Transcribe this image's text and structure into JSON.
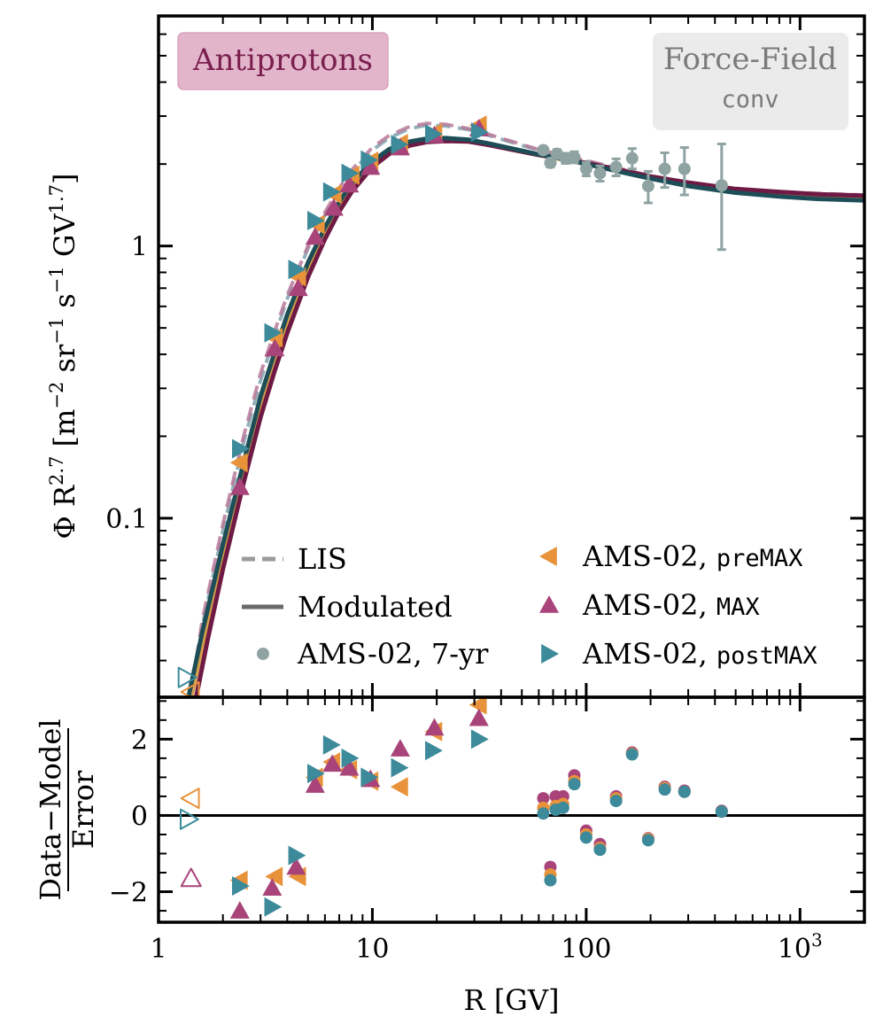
{
  "chart_data": [
    {
      "type": "line",
      "panel": "main",
      "title_badge": "Antiprotons",
      "model_badge": {
        "line1": "Force-Field",
        "line2": "conv"
      },
      "xlabel": "R [GV]",
      "xscale": "log",
      "yscale": "log",
      "xlim": [
        1,
        2000
      ],
      "ylim": [
        0.022,
        7
      ],
      "ylabel": {
        "main": "Φ R",
        "exp": "2.7",
        "units": "[m",
        "u1": "−2",
        "sr": " sr",
        "u2": "−1",
        "s": " s",
        "u3": "−1",
        "gv": " GV",
        "u4": "1.7",
        "close": "]"
      },
      "yticks": [
        {
          "value": 0.1,
          "label": "0.1"
        },
        {
          "value": 1,
          "label": "1"
        }
      ],
      "xticks": [
        {
          "value": 1,
          "label": "1"
        },
        {
          "value": 10,
          "label": "10"
        },
        {
          "value": 100,
          "label": "100"
        },
        {
          "value": 1000,
          "label": "10",
          "exp": "3"
        }
      ],
      "colors": {
        "lis": "#6b8a9a",
        "lis_max": "#b06a92",
        "mod_post": "#1d4e57",
        "mod_max": "#6e1a44",
        "mod_pre": "#d9a04a",
        "gray": "#8fa3a3",
        "pre": "#e8923a",
        "max": "#a8447a",
        "post": "#3c8a9a"
      },
      "series": [
        {
          "name": "LIS (postMAX)",
          "style": "dashed",
          "color": "#7fa2ad",
          "x": [
            1.4,
            1.6,
            2,
            2.5,
            3,
            3.5,
            4,
            5,
            6,
            7,
            8,
            10,
            12,
            15,
            18,
            22,
            28,
            35,
            45,
            60,
            80,
            100,
            150,
            200,
            300,
            500,
            800,
            1200,
            2000
          ],
          "y": [
            0.02,
            0.04,
            0.09,
            0.19,
            0.32,
            0.47,
            0.64,
            0.98,
            1.3,
            1.6,
            1.86,
            2.25,
            2.5,
            2.7,
            2.78,
            2.76,
            2.68,
            2.55,
            2.4,
            2.25,
            2.13,
            2.05,
            1.9,
            1.8,
            1.7,
            1.6,
            1.56,
            1.54,
            1.52
          ]
        },
        {
          "name": "LIS (MAX)",
          "style": "dashed",
          "color": "#b87a9a",
          "x": [
            1.4,
            1.6,
            2,
            2.5,
            3,
            3.5,
            4,
            5,
            6,
            7,
            8,
            10,
            12,
            15,
            18,
            22,
            28,
            35,
            45,
            60,
            80,
            100,
            150,
            200,
            300,
            500,
            800,
            1200,
            2000
          ],
          "y": [
            0.021,
            0.042,
            0.095,
            0.2,
            0.34,
            0.49,
            0.66,
            1.0,
            1.33,
            1.63,
            1.9,
            2.3,
            2.55,
            2.75,
            2.82,
            2.8,
            2.7,
            2.57,
            2.42,
            2.26,
            2.14,
            2.06,
            1.91,
            1.81,
            1.71,
            1.62,
            1.58,
            1.56,
            1.54
          ]
        },
        {
          "name": "Modulated (preMAX)",
          "style": "solid",
          "color": "#d9a04a",
          "x": [
            1.42,
            1.6,
            2,
            2.5,
            3,
            3.5,
            4,
            5,
            6,
            7,
            8,
            10,
            12,
            15,
            18,
            22,
            28,
            35,
            45,
            60,
            80,
            100,
            150,
            200,
            300,
            500,
            800,
            1200,
            2000
          ],
          "y": [
            0.022,
            0.034,
            0.072,
            0.15,
            0.26,
            0.38,
            0.52,
            0.82,
            1.12,
            1.4,
            1.64,
            2.0,
            2.22,
            2.38,
            2.44,
            2.46,
            2.44,
            2.36,
            2.26,
            2.16,
            2.07,
            2.0,
            1.87,
            1.78,
            1.68,
            1.59,
            1.55,
            1.52,
            1.5
          ]
        },
        {
          "name": "Modulated (MAX)",
          "style": "solid",
          "color": "#6e1a44",
          "x": [
            1.5,
            1.7,
            2,
            2.5,
            3,
            3.5,
            4,
            5,
            6,
            7,
            8,
            10,
            12,
            15,
            18,
            22,
            28,
            35,
            45,
            60,
            80,
            100,
            150,
            200,
            300,
            500,
            800,
            1200,
            2000
          ],
          "y": [
            0.022,
            0.036,
            0.065,
            0.135,
            0.235,
            0.35,
            0.48,
            0.77,
            1.06,
            1.34,
            1.58,
            1.95,
            2.18,
            2.34,
            2.41,
            2.43,
            2.42,
            2.35,
            2.26,
            2.16,
            2.08,
            2.02,
            1.89,
            1.8,
            1.71,
            1.62,
            1.58,
            1.55,
            1.53
          ]
        },
        {
          "name": "Modulated (postMAX)",
          "style": "solid",
          "color": "#1d4e57",
          "x": [
            1.38,
            1.6,
            2,
            2.5,
            3,
            3.5,
            4,
            5,
            6,
            7,
            8,
            10,
            12,
            15,
            18,
            22,
            28,
            35,
            45,
            60,
            80,
            100,
            150,
            200,
            300,
            500,
            800,
            1200,
            2000
          ],
          "y": [
            0.022,
            0.038,
            0.08,
            0.16,
            0.28,
            0.41,
            0.56,
            0.87,
            1.17,
            1.45,
            1.7,
            2.05,
            2.27,
            2.42,
            2.48,
            2.49,
            2.46,
            2.38,
            2.28,
            2.17,
            2.08,
            2.0,
            1.86,
            1.77,
            1.66,
            1.57,
            1.52,
            1.49,
            1.47
          ]
        },
        {
          "name": "AMS-02, 7-yr",
          "marker": "circle",
          "color": "#8fa3a3",
          "x": [
            63,
            68,
            73,
            80,
            88,
            100,
            116,
            138,
            164,
            195,
            233,
            288,
            430
          ],
          "y": [
            2.25,
            2.02,
            2.18,
            2.1,
            2.12,
            1.92,
            1.85,
            1.95,
            2.1,
            1.66,
            1.92,
            1.92,
            1.67
          ],
          "err": [
            0.06,
            0.07,
            0.08,
            0.09,
            0.1,
            0.11,
            0.12,
            0.14,
            0.18,
            0.22,
            0.28,
            0.38,
            0.7
          ]
        },
        {
          "name": "AMS-02, preMAX",
          "marker": "tri-left",
          "color": "#e8923a",
          "x": [
            1.42,
            2.4,
            3.5,
            4.5,
            5.5,
            6.6,
            8,
            9.8,
            13.5,
            19.5,
            31.5
          ],
          "y": [
            0.023,
            0.16,
            0.46,
            0.77,
            1.2,
            1.55,
            1.82,
            2.05,
            2.38,
            2.6,
            2.78
          ]
        },
        {
          "name": "AMS-02, MAX",
          "marker": "tri-up",
          "color": "#a8447a",
          "x": [
            2.4,
            3.5,
            4.5,
            5.4,
            6.6,
            7.8,
            9.8,
            13.5,
            19.5,
            31.5
          ],
          "y": [
            0.13,
            0.42,
            0.7,
            1.08,
            1.38,
            1.68,
            1.95,
            2.3,
            2.55,
            2.7
          ]
        },
        {
          "name": "AMS-02, postMAX",
          "marker": "tri-right",
          "color": "#3c8a9a",
          "x": [
            1.35,
            2.4,
            3.4,
            4.4,
            5.4,
            6.4,
            7.8,
            9.6,
            13.3,
            19.2,
            31.5
          ],
          "y": [
            0.026,
            0.18,
            0.48,
            0.82,
            1.24,
            1.58,
            1.85,
            2.07,
            2.36,
            2.58,
            2.62
          ]
        }
      ],
      "open_markers": [
        {
          "marker": "tri-right",
          "x": 1.35,
          "y": 0.026,
          "color": "#3c8a9a"
        },
        {
          "marker": "tri-left",
          "x": 1.42,
          "y": 0.023,
          "color": "#e8923a"
        }
      ],
      "legend": {
        "placement": "lower-right",
        "entries": [
          {
            "label": "LIS",
            "kind": "dashed",
            "color": "#9a9a9a"
          },
          {
            "label": "Modulated",
            "kind": "solid",
            "color": "#6a6a6a"
          },
          {
            "label": "AMS-02, 7-yr",
            "kind": "circle",
            "color": "#8fa3a3"
          },
          {
            "label": "AMS-02, ",
            "mono": "preMAX",
            "kind": "tri-left",
            "color": "#e8923a"
          },
          {
            "label": "AMS-02, ",
            "mono": "MAX",
            "kind": "tri-up",
            "color": "#a8447a"
          },
          {
            "label": "AMS-02, ",
            "mono": "postMAX",
            "kind": "tri-right",
            "color": "#3c8a9a"
          }
        ]
      }
    },
    {
      "type": "scatter",
      "panel": "residuals",
      "ylabel_num": "Data−Model",
      "ylabel_den": "Error",
      "ylim": [
        -2.8,
        3.1
      ],
      "yticks": [
        {
          "value": -2,
          "label": "−2"
        },
        {
          "value": 0,
          "label": "0"
        },
        {
          "value": 2,
          "label": "2"
        }
      ],
      "series": [
        {
          "name": "preMAX",
          "marker": "tri-left",
          "color": "#e8923a",
          "x": [
            2.4,
            3.5,
            4.5,
            5.4,
            6.5,
            7.8,
            9.8,
            13.5,
            19.5,
            31.5
          ],
          "y": [
            -1.7,
            -1.6,
            -1.6,
            1.0,
            1.4,
            1.2,
            0.9,
            0.75,
            2.2,
            2.9
          ]
        },
        {
          "name": "MAX",
          "marker": "tri-up",
          "color": "#a8447a",
          "x": [
            2.4,
            3.4,
            4.4,
            5.4,
            6.5,
            7.8,
            9.8,
            13.5,
            19.5,
            31.5
          ],
          "y": [
            -2.5,
            -1.9,
            -1.35,
            0.8,
            1.35,
            1.25,
            0.95,
            1.75,
            2.3,
            2.55
          ]
        },
        {
          "name": "postMAX",
          "marker": "tri-right",
          "color": "#3c8a9a",
          "x": [
            2.4,
            3.4,
            4.4,
            5.4,
            6.4,
            7.8,
            9.6,
            13.3,
            19.2,
            31.5
          ],
          "y": [
            -1.85,
            -2.4,
            -1.05,
            1.1,
            1.85,
            1.5,
            1.0,
            1.25,
            1.7,
            2.0
          ]
        },
        {
          "name": "7-yr (MAX)",
          "marker": "circle",
          "color": "#a8447a",
          "x": [
            63,
            68,
            72,
            78,
            88,
            100,
            116,
            138,
            164,
            195,
            233,
            288,
            430
          ],
          "y": [
            0.45,
            -1.35,
            0.5,
            0.5,
            1.05,
            -0.4,
            -0.75,
            0.5,
            1.65,
            -0.6,
            0.75,
            0.65,
            0.12
          ]
        },
        {
          "name": "7-yr (preMAX)",
          "marker": "circle",
          "color": "#e8923a",
          "x": [
            63,
            68,
            72,
            78,
            88,
            100,
            116,
            138,
            164,
            195,
            233,
            288,
            430
          ],
          "y": [
            0.2,
            -1.55,
            0.25,
            0.3,
            0.9,
            -0.5,
            -0.85,
            0.45,
            1.62,
            -0.62,
            0.72,
            0.62,
            0.1
          ]
        },
        {
          "name": "7-yr (postMAX)",
          "marker": "circle",
          "color": "#3c8a9a",
          "x": [
            63,
            68,
            72,
            78,
            88,
            100,
            116,
            138,
            164,
            195,
            233,
            288,
            430
          ],
          "y": [
            0.05,
            -1.7,
            0.15,
            0.2,
            0.82,
            -0.58,
            -0.9,
            0.38,
            1.6,
            -0.65,
            0.68,
            0.62,
            0.1
          ]
        }
      ],
      "open_markers": [
        {
          "marker": "tri-left",
          "x": 1.42,
          "y": 0.45,
          "color": "#e8923a"
        },
        {
          "marker": "tri-right",
          "x": 1.38,
          "y": -0.1,
          "color": "#3c8a9a"
        },
        {
          "marker": "tri-up",
          "x": 1.42,
          "y": -1.65,
          "color": "#a8447a"
        }
      ]
    }
  ]
}
